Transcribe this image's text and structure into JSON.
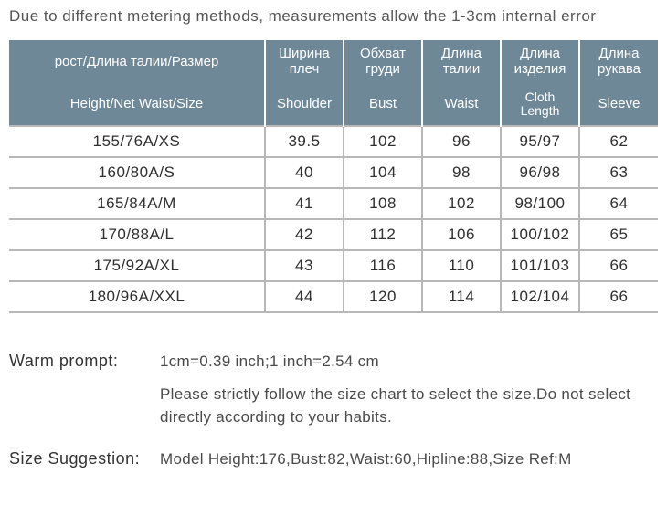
{
  "colors": {
    "header_bg": "#6f8898",
    "header_text": "#ffffff",
    "cell_bg": "#ffffff",
    "cell_text": "#2f2f2f",
    "grid_line": "#b8b8b8",
    "note_text": "#565656"
  },
  "top_note": "Due to different metering methods, measurements allow the 1-3cm internal error",
  "table": {
    "header_ru": [
      "рост/Длина талии/Размер",
      "Ширина плеч",
      "Обхват груди",
      "Длина талии",
      "Длина изделия",
      "Длина рукава"
    ],
    "header_en": [
      "Height/Net  Waist/Size",
      "Shoulder",
      "Bust",
      "Waist",
      "Cloth Length",
      "Sleeve"
    ],
    "rows": [
      [
        "155/76A/XS",
        "39.5",
        "102",
        "96",
        "95/97",
        "62"
      ],
      [
        "160/80A/S",
        "40",
        "104",
        "98",
        "96/98",
        "63"
      ],
      [
        "165/84A/M",
        "41",
        "108",
        "102",
        "98/100",
        "64"
      ],
      [
        "170/88A/L",
        "42",
        "112",
        "106",
        "100/102",
        "65"
      ],
      [
        "175/92A/XL",
        "43",
        "116",
        "110",
        "101/103",
        "66"
      ],
      [
        "180/96A/XXL",
        "44",
        "120",
        "114",
        "102/104",
        "66"
      ]
    ]
  },
  "warm_prompt": {
    "label": "Warm prompt:",
    "line1": "1cm=0.39 inch;1 inch=2.54 cm",
    "line2": "Please strictly follow the size chart  to select the size.Do not select directly according to your habits."
  },
  "size_suggestion": {
    "label": "Size Suggestion:",
    "text": "Model Height:176,Bust:82,Waist:60,Hipline:88,Size Ref:M"
  }
}
